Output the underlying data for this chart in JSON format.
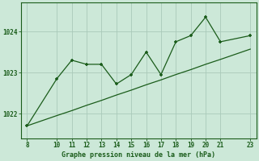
{
  "x_data": [
    8,
    10,
    11,
    12,
    13,
    14,
    15,
    16,
    17,
    18,
    19,
    20,
    21,
    23
  ],
  "y_data": [
    1021.7,
    1022.85,
    1023.3,
    1023.2,
    1023.2,
    1022.72,
    1022.95,
    1023.5,
    1022.95,
    1023.75,
    1023.9,
    1024.35,
    1023.75,
    1023.9
  ],
  "x_trend": [
    8,
    10,
    11,
    12,
    13,
    14,
    15,
    16,
    17,
    18,
    19,
    20,
    21,
    23
  ],
  "y_trend": [
    1021.7,
    1021.95,
    1022.07,
    1022.2,
    1022.32,
    1022.45,
    1022.57,
    1022.7,
    1022.82,
    1022.95,
    1023.07,
    1023.2,
    1023.32,
    1023.57
  ],
  "line_color": "#1a5c1a",
  "marker_color": "#1a5c1a",
  "bg_color": "#cce8d8",
  "grid_color": "#aacaba",
  "xlabel": "Graphe pression niveau de la mer (hPa)",
  "xticks": [
    8,
    10,
    11,
    12,
    13,
    14,
    15,
    16,
    17,
    18,
    19,
    20,
    21,
    23
  ],
  "yticks": [
    1022,
    1023,
    1024
  ],
  "ylim": [
    1021.4,
    1024.7
  ],
  "xlim": [
    7.6,
    23.4
  ]
}
